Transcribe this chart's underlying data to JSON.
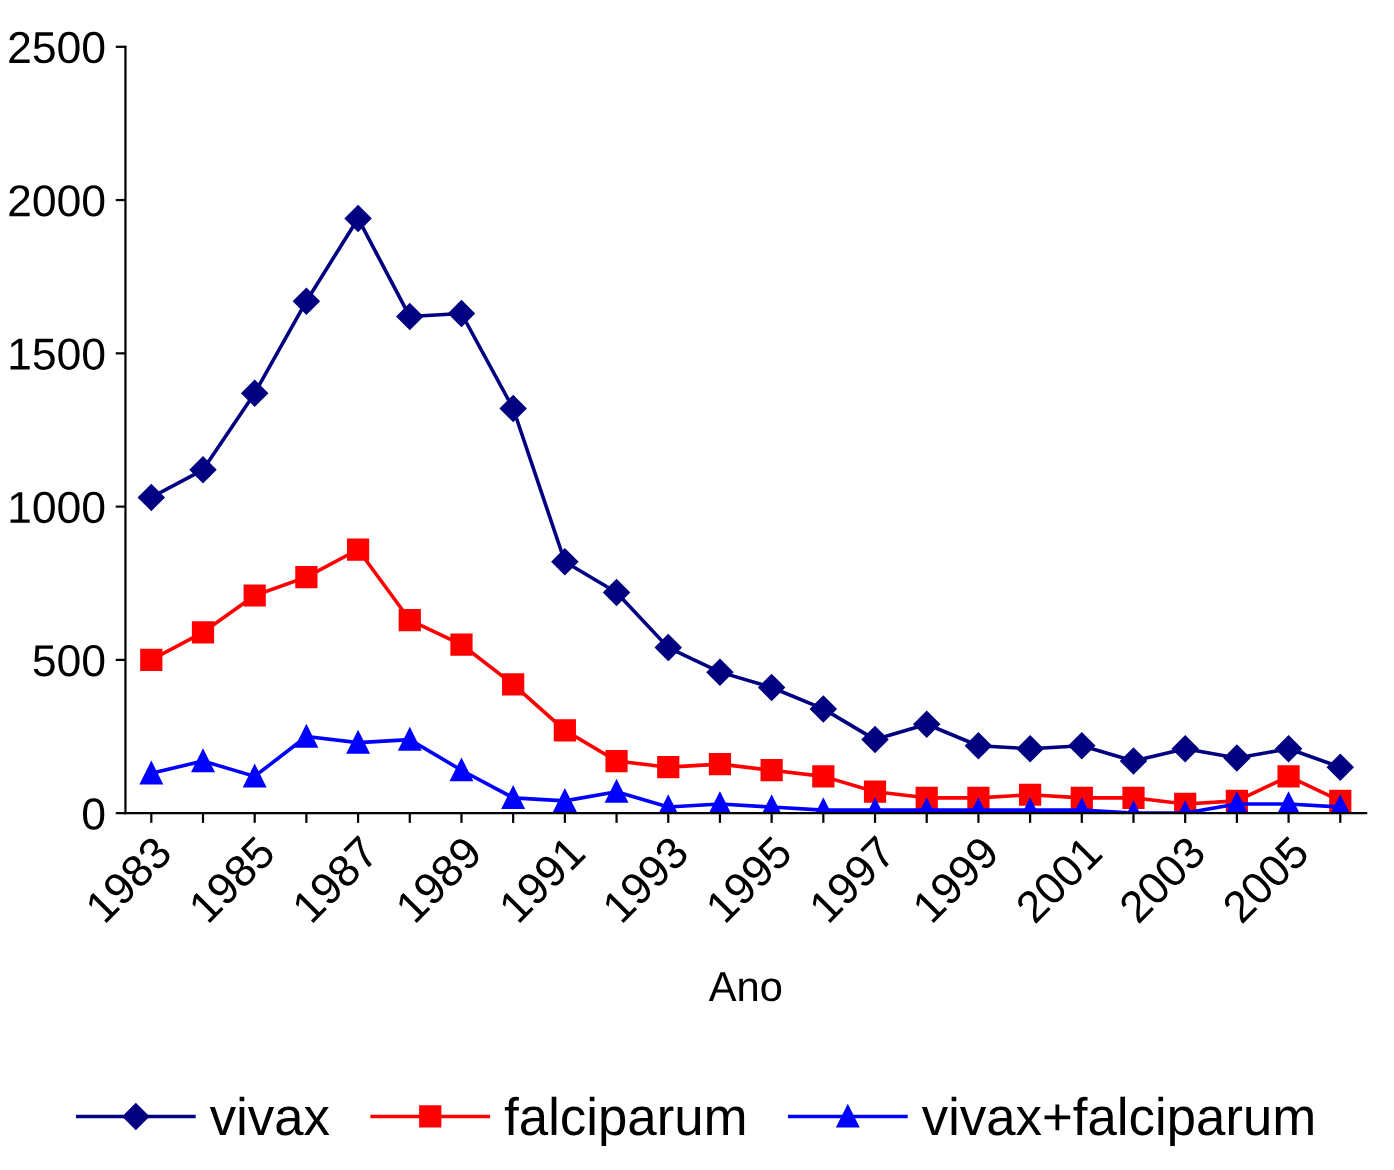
{
  "chart_data": {
    "type": "line",
    "xlabel": "Ano",
    "categories": [
      "1983",
      null,
      "1985",
      null,
      "1987",
      null,
      "1989",
      null,
      "1991",
      null,
      "1993",
      null,
      "1995",
      null,
      "1997",
      null,
      "1999",
      null,
      "2001",
      null,
      "2003",
      null,
      "2005",
      null
    ],
    "series": [
      {
        "name": "vivax",
        "color": "#000080",
        "marker": "diamond",
        "values": [
          1030,
          1120,
          1370,
          1670,
          1940,
          1620,
          1630,
          1320,
          820,
          720,
          540,
          460,
          410,
          340,
          240,
          290,
          220,
          210,
          220,
          170,
          210,
          180,
          210,
          150
        ]
      },
      {
        "name": "falciparum",
        "color": "#ff0000",
        "marker": "square",
        "values": [
          500,
          590,
          710,
          770,
          860,
          630,
          550,
          420,
          270,
          170,
          150,
          160,
          140,
          120,
          70,
          50,
          50,
          60,
          50,
          50,
          30,
          40,
          120,
          40
        ]
      },
      {
        "name": "vivax+falciparum",
        "color": "#0000ff",
        "marker": "triangle",
        "values": [
          130,
          170,
          120,
          250,
          230,
          240,
          140,
          50,
          40,
          70,
          20,
          30,
          20,
          10,
          10,
          10,
          10,
          10,
          10,
          0,
          0,
          30,
          30,
          20
        ]
      }
    ],
    "ylim": [
      0,
      2500
    ],
    "yticks": [
      0,
      500,
      1000,
      1500,
      2000,
      2500
    ],
    "grid": false,
    "legend": "bottom"
  }
}
